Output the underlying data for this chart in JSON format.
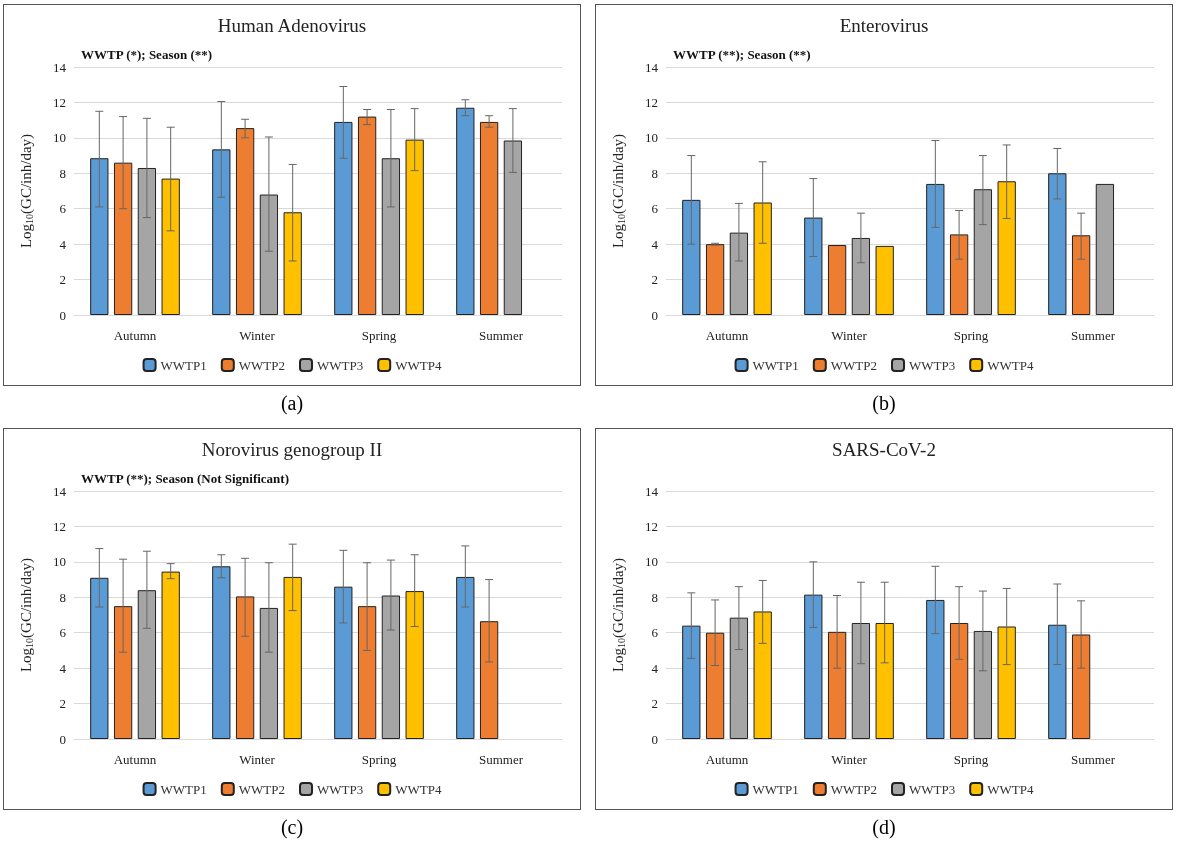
{
  "chart_data": [
    {
      "type": "bar",
      "title": "Human Adenovirus",
      "subtitle": "WWTP (*); Season (**)",
      "ylabel": "Log$_{10}$(GC/inh/day)",
      "annotations": [
        "(a)"
      ],
      "categories": [
        "Autumn",
        "Winter",
        "Spring",
        "Summer"
      ],
      "ylim": [
        0,
        14
      ],
      "yticks": [
        0,
        2,
        4,
        6,
        8,
        10,
        12,
        14
      ],
      "grid": "y",
      "legend": "bottom",
      "series": [
        {
          "name": "WWTP1",
          "color": "#5b9bd5",
          "values": [
            8.85,
            9.35,
            10.9,
            11.7
          ],
          "errors": [
            [
              6.1,
              11.5
            ],
            [
              6.65,
              12.05
            ],
            [
              8.85,
              12.9
            ],
            [
              11.25,
              12.15
            ]
          ]
        },
        {
          "name": "WWTP2",
          "color": "#ed7d31",
          "values": [
            8.6,
            10.55,
            11.2,
            10.9
          ],
          "errors": [
            [
              6.0,
              11.2
            ],
            [
              10.0,
              11.05
            ],
            [
              10.75,
              11.6
            ],
            [
              10.6,
              11.25
            ]
          ]
        },
        {
          "name": "WWTP3",
          "color": "#a5a5a5",
          "values": [
            8.3,
            6.8,
            8.85,
            9.85
          ],
          "errors": [
            [
              5.5,
              11.1
            ],
            [
              3.6,
              10.05
            ],
            [
              6.1,
              11.6
            ],
            [
              8.05,
              11.65
            ]
          ]
        },
        {
          "name": "WWTP4",
          "color": "#ffc000",
          "values": [
            7.7,
            5.8,
            9.9,
            null
          ],
          "errors": [
            [
              4.75,
              10.6
            ],
            [
              3.05,
              8.5
            ],
            [
              8.15,
              11.65
            ],
            null
          ]
        }
      ]
    },
    {
      "type": "bar",
      "title": "Enterovirus",
      "subtitle": "WWTP (**); Season (**)",
      "ylabel": "Log$_{10}$(GC/inh/day)",
      "annotations": [
        "(b)"
      ],
      "categories": [
        "Autumn",
        "Winter",
        "Spring",
        "Summer"
      ],
      "ylim": [
        0,
        14
      ],
      "yticks": [
        0,
        2,
        4,
        6,
        8,
        10,
        12,
        14
      ],
      "grid": "y",
      "legend": "bottom",
      "series": [
        {
          "name": "WWTP1",
          "color": "#5b9bd5",
          "values": [
            6.5,
            5.5,
            7.4,
            8.0
          ],
          "errors": [
            [
              4.0,
              9.0
            ],
            [
              3.3,
              7.7
            ],
            [
              4.95,
              9.85
            ],
            [
              6.55,
              9.4
            ]
          ]
        },
        {
          "name": "WWTP2",
          "color": "#ed7d31",
          "values": [
            4.0,
            3.95,
            4.55,
            4.5
          ],
          "errors": [
            [
              3.95,
              4.05
            ],
            null,
            [
              3.15,
              5.9
            ],
            [
              3.15,
              5.75
            ]
          ]
        },
        {
          "name": "WWTP3",
          "color": "#a5a5a5",
          "values": [
            4.65,
            4.35,
            7.1,
            7.4
          ],
          "errors": [
            [
              3.05,
              6.3
            ],
            [
              2.95,
              5.75
            ],
            [
              5.1,
              9.0
            ],
            null
          ]
        },
        {
          "name": "WWTP4",
          "color": "#ffc000",
          "values": [
            6.35,
            3.9,
            7.55,
            null
          ],
          "errors": [
            [
              4.05,
              8.65
            ],
            null,
            [
              5.45,
              9.6
            ],
            null
          ]
        }
      ]
    },
    {
      "type": "bar",
      "title": "Norovirus genogroup II",
      "subtitle": "WWTP (**); Season (Not Significant)",
      "ylabel": "Log$_{10}$(GC/inh/day)",
      "annotations": [
        "(c)"
      ],
      "categories": [
        "Autumn",
        "Winter",
        "Spring",
        "Summer"
      ],
      "ylim": [
        0,
        14
      ],
      "yticks": [
        0,
        2,
        4,
        6,
        8,
        10,
        12,
        14
      ],
      "grid": "y",
      "legend": "bottom",
      "series": [
        {
          "name": "WWTP1",
          "color": "#5b9bd5",
          "values": [
            9.1,
            9.75,
            8.6,
            9.15
          ],
          "errors": [
            [
              7.45,
              10.75
            ],
            [
              9.1,
              10.4
            ],
            [
              6.55,
              10.65
            ],
            [
              7.45,
              10.9
            ]
          ]
        },
        {
          "name": "WWTP2",
          "color": "#ed7d31",
          "values": [
            7.5,
            8.05,
            7.5,
            6.65
          ],
          "errors": [
            [
              4.9,
              10.15
            ],
            [
              5.8,
              10.2
            ],
            [
              5.0,
              9.95
            ],
            [
              4.35,
              9.0
            ]
          ]
        },
        {
          "name": "WWTP3",
          "color": "#a5a5a5",
          "values": [
            8.4,
            7.4,
            8.1,
            null
          ],
          "errors": [
            [
              6.25,
              10.6
            ],
            [
              4.9,
              9.95
            ],
            [
              6.15,
              10.1
            ],
            null
          ]
        },
        {
          "name": "WWTP4",
          "color": "#ffc000",
          "values": [
            9.45,
            9.15,
            8.35,
            null
          ],
          "errors": [
            [
              9.05,
              9.9
            ],
            [
              7.25,
              11.0
            ],
            [
              6.35,
              10.4
            ],
            null
          ]
        }
      ]
    },
    {
      "type": "bar",
      "title": "SARS-CoV-2",
      "ylabel": "Log$_{10}$(GC/inh/day)",
      "annotations": [
        "(d)"
      ],
      "categories": [
        "Autumn",
        "Winter",
        "Spring",
        "Summer"
      ],
      "ylim": [
        0,
        14
      ],
      "yticks": [
        0,
        2,
        4,
        6,
        8,
        10,
        12,
        14
      ],
      "grid": "y",
      "legend": "bottom",
      "series": [
        {
          "name": "WWTP1",
          "color": "#5b9bd5",
          "values": [
            6.4,
            8.15,
            7.85,
            6.45
          ],
          "errors": [
            [
              4.55,
              8.25
            ],
            [
              6.3,
              10.0
            ],
            [
              5.95,
              9.75
            ],
            [
              4.2,
              8.75
            ]
          ]
        },
        {
          "name": "WWTP2",
          "color": "#ed7d31",
          "values": [
            6.0,
            6.05,
            6.55,
            5.9
          ],
          "errors": [
            [
              4.15,
              7.85
            ],
            [
              4.0,
              8.1
            ],
            [
              4.5,
              8.6
            ],
            [
              4.0,
              7.8
            ]
          ]
        },
        {
          "name": "WWTP3",
          "color": "#a5a5a5",
          "values": [
            6.85,
            6.55,
            6.1,
            null
          ],
          "errors": [
            [
              5.05,
              8.6
            ],
            [
              4.25,
              8.85
            ],
            [
              3.85,
              8.35
            ],
            null
          ]
        },
        {
          "name": "WWTP4",
          "color": "#ffc000",
          "values": [
            7.2,
            6.55,
            6.35,
            null
          ],
          "errors": [
            [
              5.4,
              8.95
            ],
            [
              4.3,
              8.85
            ],
            [
              4.2,
              8.5
            ],
            null
          ]
        }
      ]
    }
  ]
}
